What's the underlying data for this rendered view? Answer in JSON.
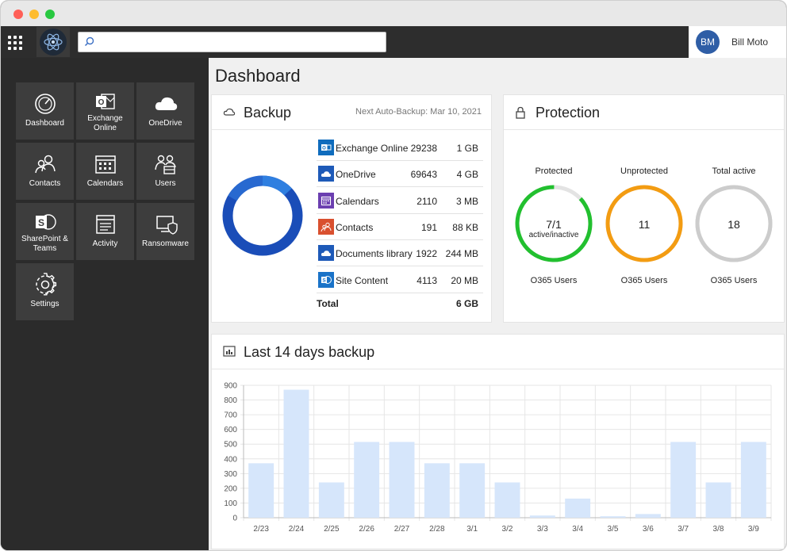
{
  "topbar": {
    "search_placeholder": "",
    "user_initials": "BM",
    "user_name": "Bill Moto"
  },
  "sidebar": {
    "tiles": [
      {
        "label": "Dashboard",
        "icon": "gauge-icon"
      },
      {
        "label": "Exchange Online",
        "icon": "outlook-icon"
      },
      {
        "label": "OneDrive",
        "icon": "cloud-icon"
      },
      {
        "label": "Contacts",
        "icon": "contacts-icon"
      },
      {
        "label": "Calendars",
        "icon": "calendar-icon"
      },
      {
        "label": "Users",
        "icon": "users-icon"
      },
      {
        "label": "SharePoint & Teams",
        "icon": "sharepoint-icon"
      },
      {
        "label": "Activity",
        "icon": "activity-icon"
      },
      {
        "label": "Ransomware",
        "icon": "ransomware-icon"
      },
      {
        "label": "Settings",
        "icon": "gear-icon"
      }
    ]
  },
  "main": {
    "title": "Dashboard"
  },
  "backup": {
    "title": "Backup",
    "next_backup": "Next Auto-Backup: Mar 10, 2021",
    "rows": [
      {
        "name": "Exchange Online",
        "count": "29238",
        "size": "1 GB",
        "color": "#0f6cbd",
        "icon": "outlook-icon"
      },
      {
        "name": "OneDrive",
        "count": "69643",
        "size": "4 GB",
        "color": "#1e5ab8",
        "icon": "cloud-icon"
      },
      {
        "name": "Calendars",
        "count": "2110",
        "size": "3 MB",
        "color": "#6b3fb0",
        "icon": "calendar-icon"
      },
      {
        "name": "Contacts",
        "count": "191",
        "size": "88 KB",
        "color": "#d9502f",
        "icon": "contacts-icon"
      },
      {
        "name": "Documents library",
        "count": "1922",
        "size": "244 MB",
        "color": "#1e5ab8",
        "icon": "cloud-icon"
      },
      {
        "name": "Site Content",
        "count": "4113",
        "size": "20 MB",
        "color": "#1a73c8",
        "icon": "sharepoint-icon"
      }
    ],
    "total_label": "Total",
    "total_value": "6 GB"
  },
  "protection": {
    "title": "Protection",
    "gauges": [
      {
        "label": "Protected",
        "value": "7/1",
        "sub": "active/inactive",
        "foot": "O365 Users",
        "color": "#22c02f",
        "fraction": 0.87
      },
      {
        "label": "Unprotected",
        "value": "11",
        "sub": "",
        "foot": "O365 Users",
        "color": "#f39c12",
        "fraction": 1.0
      },
      {
        "label": "Total active",
        "value": "18",
        "sub": "",
        "foot": "O365 Users",
        "color": "#cccccc",
        "fraction": 1.0
      }
    ]
  },
  "chart_card": {
    "title": "Last 14 days backup"
  },
  "chart_data": {
    "type": "bar",
    "title": "Last 14 days backup",
    "xlabel": "",
    "ylabel": "",
    "ylim": [
      0,
      900
    ],
    "yticks": [
      0,
      100,
      200,
      300,
      400,
      500,
      600,
      700,
      800,
      900
    ],
    "grid": true,
    "categories": [
      "2/23",
      "2/24",
      "2/25",
      "2/26",
      "2/27",
      "2/28",
      "3/1",
      "3/2",
      "3/3",
      "3/4",
      "3/5",
      "3/6",
      "3/7",
      "3/8",
      "3/9"
    ],
    "values": [
      370,
      870,
      240,
      515,
      515,
      370,
      370,
      240,
      15,
      130,
      10,
      25,
      515,
      240,
      515
    ],
    "bar_color": "#d6e6fb"
  }
}
